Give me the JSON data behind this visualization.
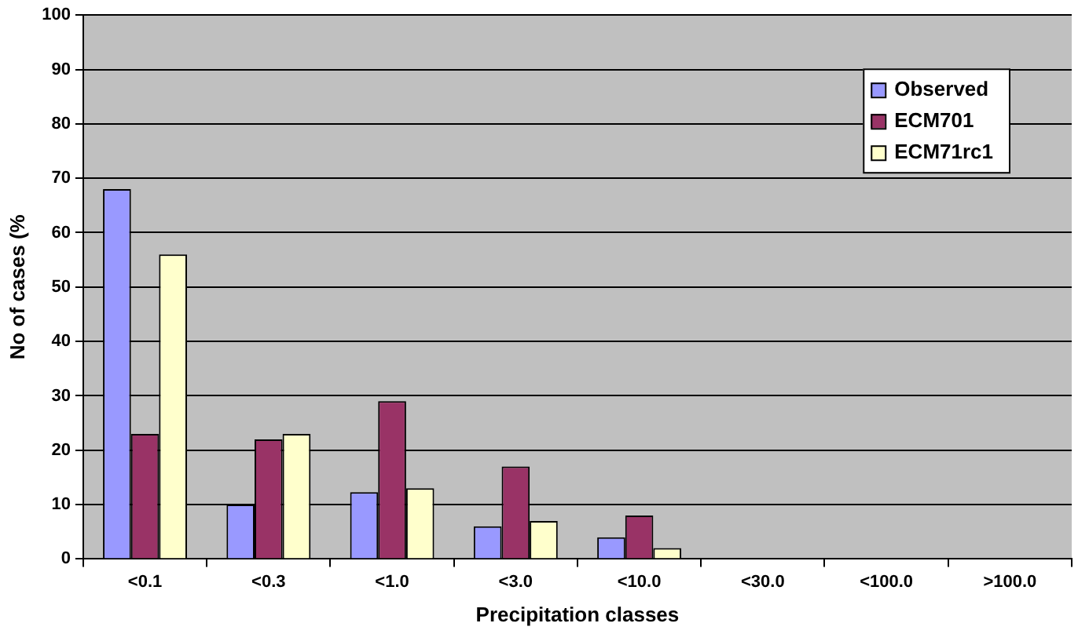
{
  "chart_data": {
    "type": "bar",
    "xlabel": "Precipitation classes",
    "ylabel": "No of cases (%",
    "categories": [
      "<0.1",
      "<0.3",
      "<1.0",
      "<3.0",
      "<10.0",
      "<30.0",
      "<100.0",
      ">100.0"
    ],
    "series": [
      {
        "name": "Observed",
        "color": "#9999ff",
        "values": [
          68,
          10,
          12.3,
          6,
          4,
          0,
          0,
          0
        ]
      },
      {
        "name": "ECM701",
        "color": "#993366",
        "values": [
          23,
          22,
          29,
          17,
          8,
          0,
          0,
          0
        ]
      },
      {
        "name": "ECM71rc1",
        "color": "#ffffcc",
        "values": [
          56,
          23,
          13,
          7,
          2,
          0,
          0,
          0
        ]
      }
    ],
    "ylim": [
      0,
      100
    ],
    "yticks": [
      0,
      10,
      20,
      30,
      40,
      50,
      60,
      70,
      80,
      90,
      100
    ],
    "grid": "y",
    "legend": "top right"
  }
}
